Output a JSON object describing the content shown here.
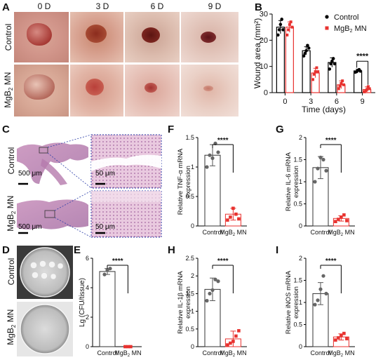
{
  "panels": {
    "a": "A",
    "b": "B",
    "c": "C",
    "d": "D",
    "e": "E",
    "f": "F",
    "g": "G",
    "h": "H",
    "i": "I"
  },
  "groups": {
    "control": "Control",
    "mgb2_pre": "MgB",
    "mgb2_sub": "2",
    "mgb2_post": " MN"
  },
  "panel_a": {
    "days": [
      "0 D",
      "3 D",
      "6 D",
      "9 D"
    ]
  },
  "panel_c": {
    "scale_large": "500 μm",
    "scale_small": "50 μm"
  },
  "significance": "****",
  "colors": {
    "control": "#000000",
    "mgb2": "#e8322f",
    "bar_control": "#555555",
    "bar_mgb2": "#e8322f",
    "he_stain": "#c98bb5"
  },
  "chart_data": [
    {
      "panel": "B",
      "type": "bar",
      "xlabel": "Time (days)",
      "ylabel": "Wound area (mm²)",
      "categories": [
        "0",
        "3",
        "6",
        "9"
      ],
      "ylim": [
        0,
        30
      ],
      "yticks": [
        0,
        10,
        20,
        30
      ],
      "legend_position": "top-right",
      "series": [
        {
          "name": "Control",
          "values": [
            25,
            16,
            11.5,
            8.3
          ],
          "errors": [
            2.5,
            1.5,
            1.8,
            0.6
          ],
          "points": [
            [
              22,
              24,
              26,
              28,
              24
            ],
            [
              14,
              15,
              16,
              18,
              17
            ],
            [
              9,
              11,
              12,
              13,
              11
            ],
            [
              7.8,
              8,
              8.5,
              8.8,
              8.2
            ]
          ]
        },
        {
          "name": "MgB2 MN",
          "values": [
            25,
            7.5,
            3,
            1.2
          ],
          "errors": [
            2,
            1.8,
            1.5,
            1
          ],
          "points": [
            [
              22,
              24,
              26,
              27,
              25
            ],
            [
              5,
              7,
              8,
              9.5,
              8
            ],
            [
              1.5,
              2.5,
              3.5,
              4.5,
              3
            ],
            [
              0.3,
              0.8,
              1.2,
              2.3,
              1.5
            ]
          ]
        }
      ],
      "annotations": [
        {
          "category": "9",
          "text": "****"
        }
      ]
    },
    {
      "panel": "E",
      "type": "bar",
      "ylabel": "Lg (CFU/tissue)",
      "categories": [
        "Control",
        "MgB2 MN"
      ],
      "values": [
        5.1,
        0
      ],
      "errors": [
        0.2,
        0
      ],
      "points": [
        [
          4.9,
          5.2,
          5.3
        ],
        [
          0,
          0,
          0
        ]
      ],
      "ylim": [
        0,
        6
      ],
      "yticks": [
        0,
        2,
        4,
        6
      ]
    },
    {
      "panel": "F",
      "type": "bar",
      "ylabel_line1": "Relative TNF-α mRNA",
      "ylabel_line2": "expression",
      "categories": [
        "Control",
        "MgB2 MN"
      ],
      "values": [
        1.2,
        0.2
      ],
      "errors": [
        0.18,
        0.1
      ],
      "points": [
        [
          1.0,
          1.2,
          1.15,
          1.4,
          1.25
        ],
        [
          0.1,
          0.15,
          0.3,
          0.2,
          0.12
        ]
      ],
      "ylim": [
        0,
        1.5
      ],
      "yticks": [
        0,
        0.5,
        1.0,
        1.5
      ]
    },
    {
      "panel": "G",
      "type": "bar",
      "ylabel_line1": "Relative IL-6 mRNA",
      "ylabel_line2": "expression",
      "categories": [
        "Control",
        "MgB2 MN"
      ],
      "values": [
        1.32,
        0.17
      ],
      "errors": [
        0.25,
        0.06
      ],
      "points": [
        [
          1.0,
          1.3,
          1.55,
          1.5,
          1.25
        ],
        [
          0.1,
          0.15,
          0.2,
          0.25,
          0.12
        ]
      ],
      "ylim": [
        0,
        2.0
      ],
      "yticks": [
        0,
        0.5,
        1.0,
        1.5,
        2.0
      ]
    },
    {
      "panel": "H",
      "type": "bar",
      "ylabel_line1": "Relative IL-1β mRNA",
      "ylabel_line2": "expression",
      "categories": [
        "Control",
        "MgB2 MN"
      ],
      "values": [
        1.62,
        0.22
      ],
      "errors": [
        0.32,
        0.22
      ],
      "points": [
        [
          1.3,
          1.5,
          1.6,
          1.9,
          1.85
        ],
        [
          0.05,
          0.1,
          0.15,
          0.3,
          0.45
        ]
      ],
      "ylim": [
        0,
        2.5
      ],
      "yticks": [
        0,
        0.5,
        1.0,
        1.5,
        2.0,
        2.5
      ]
    },
    {
      "panel": "I",
      "type": "bar",
      "ylabel_line1": "Relative iNOS mRNA",
      "ylabel_line2": "expression",
      "categories": [
        "Control",
        "MgB2 MN"
      ],
      "values": [
        1.2,
        0.22
      ],
      "errors": [
        0.25,
        0.07
      ],
      "points": [
        [
          0.95,
          1.05,
          1.3,
          1.6,
          1.2
        ],
        [
          0.15,
          0.2,
          0.25,
          0.3,
          0.18
        ]
      ],
      "ylim": [
        0,
        2.0
      ],
      "yticks": [
        0,
        0.5,
        1.0,
        1.5,
        2.0
      ]
    }
  ]
}
